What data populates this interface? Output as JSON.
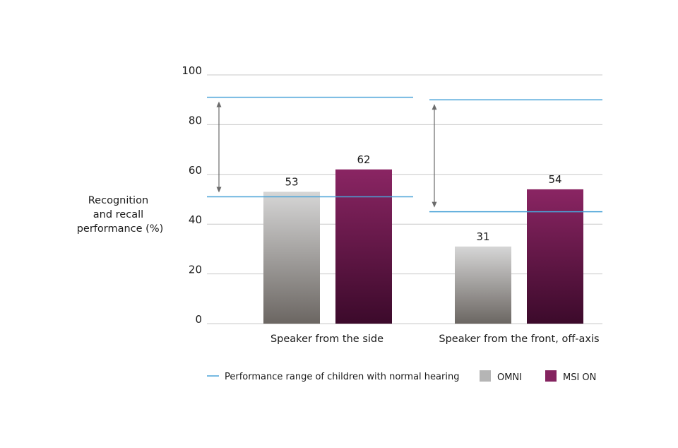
{
  "chart_data": {
    "type": "bar",
    "ylabel_lines": [
      "Recognition",
      "and recall",
      "performance (%)"
    ],
    "ylim": [
      0,
      100
    ],
    "yticks": [
      0,
      20,
      40,
      60,
      80,
      100
    ],
    "grid": true,
    "categories": [
      "Speaker from the side",
      "Speaker from the front, off-axis"
    ],
    "series": [
      {
        "name": "OMNI",
        "values": [
          53,
          31
        ],
        "value_labels": [
          "53",
          "31"
        ]
      },
      {
        "name": "MSI ON",
        "values": [
          62,
          54
        ],
        "value_labels": [
          "62",
          "54"
        ]
      }
    ],
    "normal_hearing_range": {
      "name": "Performance range of children with normal hearing",
      "ranges": [
        [
          51,
          91
        ],
        [
          45,
          90
        ]
      ]
    },
    "legend_placement": "bottom",
    "colors": {
      "omni_top": "#d6d6d6",
      "omni_bottom": "#6b6662",
      "omni_legend": "#b5b5b5",
      "msi_top": "#8a2563",
      "msi_bottom": "#3c0a2b",
      "msi_legend": "#84235f",
      "range_line": "#4aa3d8",
      "grid": "#c8c8c8",
      "arrow": "#6b6b6b"
    }
  }
}
